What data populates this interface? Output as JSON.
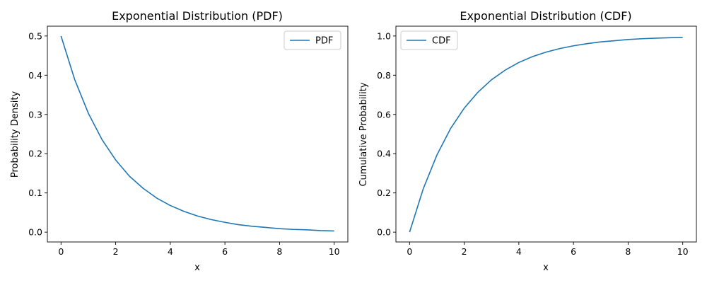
{
  "chart_data": [
    {
      "type": "line",
      "title": "Exponential Distribution (PDF)",
      "xlabel": "x",
      "ylabel": "Probability Density",
      "xlim": [
        -0.5,
        10.5
      ],
      "ylim": [
        -0.025,
        0.525
      ],
      "xticks": [
        0,
        2,
        4,
        6,
        8,
        10
      ],
      "xtick_labels": [
        "0",
        "2",
        "4",
        "6",
        "8",
        "10"
      ],
      "yticks": [
        0.0,
        0.1,
        0.2,
        0.3,
        0.4,
        0.5
      ],
      "ytick_labels": [
        "0.0",
        "0.1",
        "0.2",
        "0.3",
        "0.4",
        "0.5"
      ],
      "grid": false,
      "legend_position": "top-right",
      "series": [
        {
          "name": "PDF",
          "color": "#1f77b4",
          "x": [
            0,
            0.5,
            1,
            1.5,
            2,
            2.5,
            3,
            3.5,
            4,
            4.5,
            5,
            5.5,
            6,
            6.5,
            7,
            7.5,
            8,
            8.5,
            9,
            9.5,
            10
          ],
          "y": [
            0.5,
            0.389,
            0.303,
            0.236,
            0.184,
            0.143,
            0.112,
            0.087,
            0.068,
            0.053,
            0.041,
            0.032,
            0.025,
            0.019,
            0.015,
            0.012,
            0.009,
            0.007,
            0.006,
            0.004,
            0.003
          ]
        }
      ]
    },
    {
      "type": "line",
      "title": "Exponential Distribution (CDF)",
      "xlabel": "x",
      "ylabel": "Cumulative Probability",
      "xlim": [
        -0.5,
        10.5
      ],
      "ylim": [
        -0.05,
        1.05
      ],
      "xticks": [
        0,
        2,
        4,
        6,
        8,
        10
      ],
      "xtick_labels": [
        "0",
        "2",
        "4",
        "6",
        "8",
        "10"
      ],
      "yticks": [
        0.0,
        0.2,
        0.4,
        0.6,
        0.8,
        1.0
      ],
      "ytick_labels": [
        "0.0",
        "0.2",
        "0.4",
        "0.6",
        "0.8",
        "1.0"
      ],
      "grid": false,
      "legend_position": "top-left",
      "series": [
        {
          "name": "CDF",
          "color": "#1f77b4",
          "x": [
            0,
            0.5,
            1,
            1.5,
            2,
            2.5,
            3,
            3.5,
            4,
            4.5,
            5,
            5.5,
            6,
            6.5,
            7,
            7.5,
            8,
            8.5,
            9,
            9.5,
            10
          ],
          "y": [
            0.0,
            0.221,
            0.393,
            0.528,
            0.632,
            0.713,
            0.777,
            0.826,
            0.865,
            0.895,
            0.918,
            0.936,
            0.95,
            0.961,
            0.97,
            0.976,
            0.982,
            0.986,
            0.989,
            0.991,
            0.993
          ]
        }
      ]
    }
  ]
}
